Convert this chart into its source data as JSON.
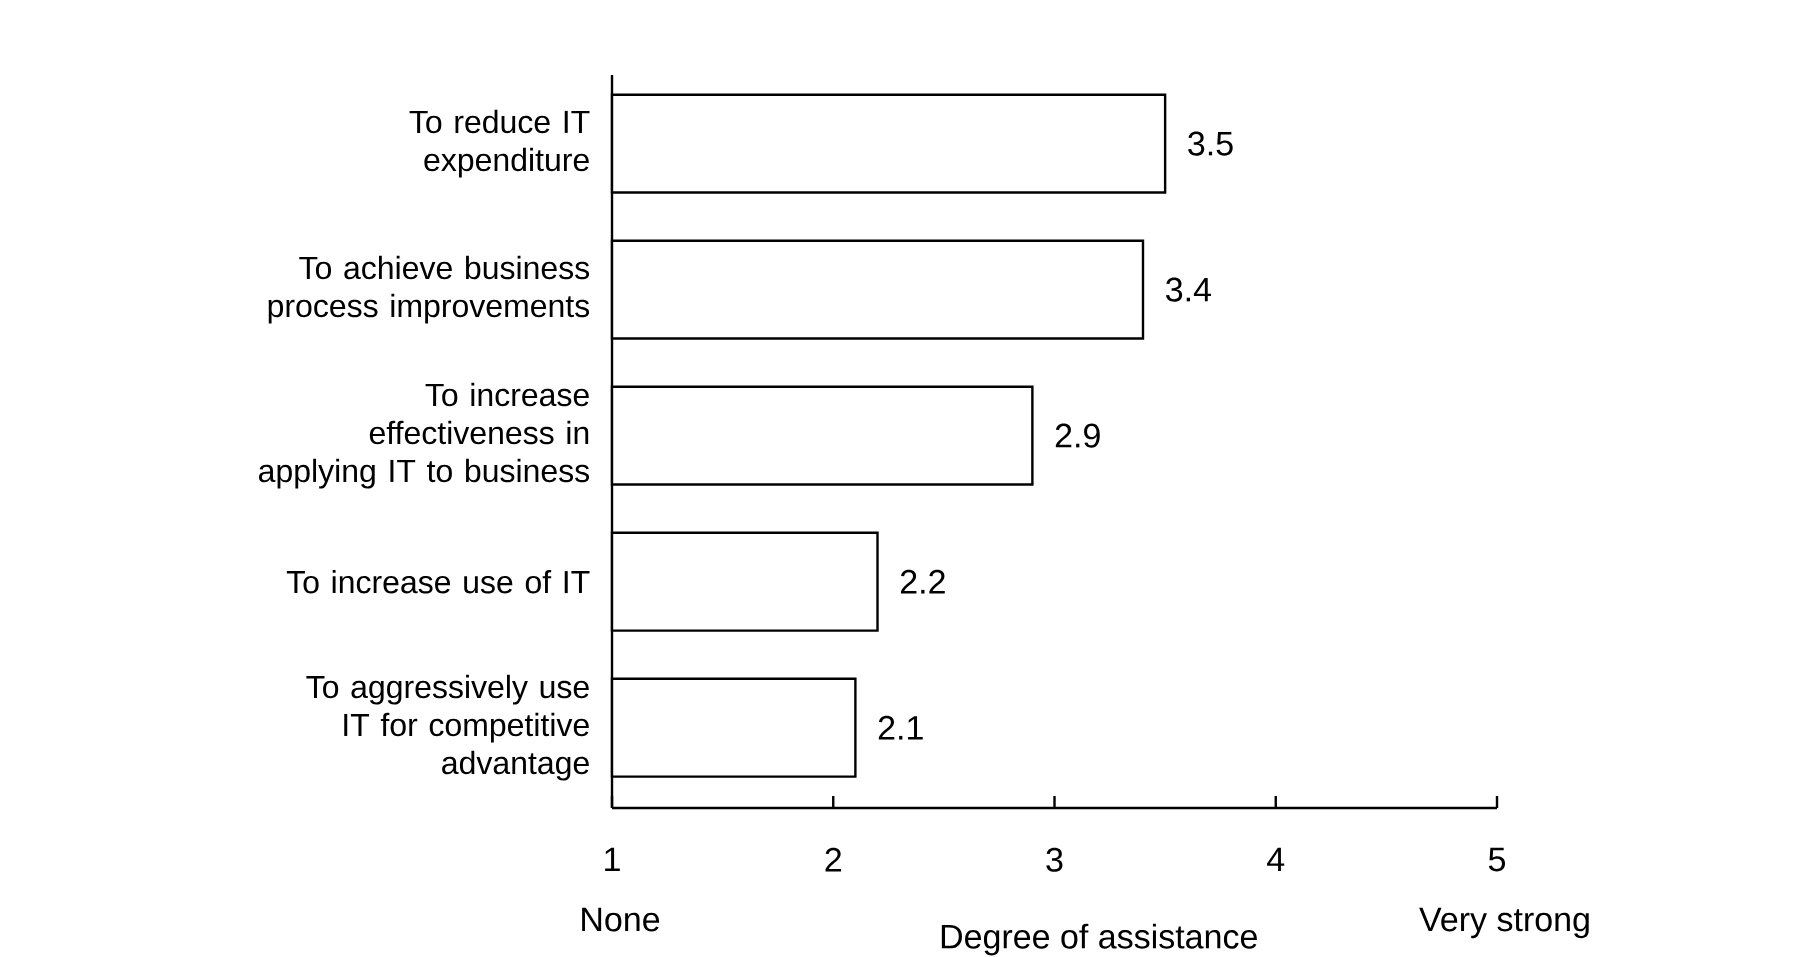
{
  "chart_data": {
    "type": "bar",
    "orientation": "horizontal",
    "categories": [
      "To reduce IT expenditure",
      "To achieve business process improvements",
      "To increase effectiveness in applying IT to business",
      "To increase use of IT",
      "To aggressively use IT for competitive advantage"
    ],
    "values": [
      3.5,
      3.4,
      2.9,
      2.2,
      2.1
    ],
    "color": "#000000",
    "xlim": [
      1,
      5
    ],
    "xticks": [
      1,
      2,
      3,
      4,
      5
    ],
    "xlabel": "Degree of assistance",
    "annotations": [
      "None",
      "Very strong"
    ],
    "data_labels": true,
    "grid": false
  }
}
